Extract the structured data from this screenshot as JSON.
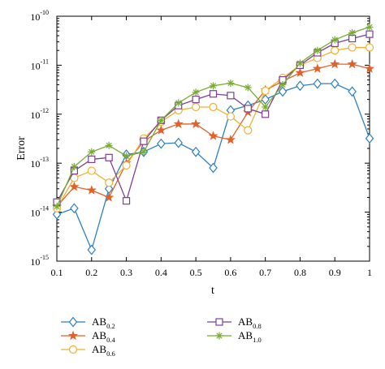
{
  "chart_data": {
    "type": "line",
    "xlabel": "t",
    "ylabel": "Error",
    "xscale": "linear",
    "yscale": "log",
    "xlim": [
      0.1,
      1.0
    ],
    "ylim": [
      1e-15,
      1e-10
    ],
    "grid": false,
    "legend_position": "bottom",
    "x_ticks": [
      0.1,
      0.2,
      0.3,
      0.4,
      0.5,
      0.6,
      0.7,
      0.8,
      0.9,
      1.0
    ],
    "x_tick_labels": [
      "0.1",
      "0.2",
      "0.3",
      "0.4",
      "0.5",
      "0.6",
      "0.7",
      "0.8",
      "0.9",
      "1"
    ],
    "y_ticks": [
      {
        "value": 1e-15,
        "base": "10",
        "exp": "-15"
      },
      {
        "value": 1e-14,
        "base": "10",
        "exp": "-14"
      },
      {
        "value": 1e-13,
        "base": "10",
        "exp": "-13"
      },
      {
        "value": 1e-12,
        "base": "10",
        "exp": "-12"
      },
      {
        "value": 1e-11,
        "base": "10",
        "exp": "-11"
      },
      {
        "value": 1e-10,
        "base": "10",
        "exp": "-10"
      }
    ],
    "x": [
      0.1,
      0.15,
      0.2,
      0.25,
      0.3,
      0.35,
      0.4,
      0.45,
      0.5,
      0.55,
      0.6,
      0.65,
      0.7,
      0.75,
      0.8,
      0.85,
      0.9,
      0.95,
      1.0
    ],
    "series": [
      {
        "name": "AB",
        "sub": "0.2",
        "color": "#2f7fc1",
        "marker": "diamond",
        "values": [
          9e-15,
          1.2e-14,
          1.7e-15,
          3e-14,
          1.5e-13,
          1.7e-13,
          2.5e-13,
          2.6e-13,
          1.7e-13,
          8e-14,
          1.2e-12,
          1.5e-12,
          2e-12,
          2.9e-12,
          3.8e-12,
          4.2e-12,
          4.2e-12,
          2.9e-12,
          3.2e-13
        ]
      },
      {
        "name": "AB",
        "sub": "0.4",
        "color": "#e0622a",
        "marker": "star",
        "values": [
          1.3e-14,
          3.3e-14,
          2.8e-14,
          2e-14,
          1e-13,
          2.8e-13,
          4.7e-13,
          6.3e-13,
          6.3e-13,
          3.6e-13,
          3e-13,
          1.1e-12,
          3.1e-12,
          4.7e-12,
          7e-12,
          8.5e-12,
          1.05e-11,
          1.05e-11,
          8.5e-12
        ]
      },
      {
        "name": "AB",
        "sub": "0.6",
        "color": "#f0b030",
        "marker": "circle",
        "values": [
          1.2e-14,
          5e-14,
          7e-14,
          4e-14,
          9e-14,
          3.2e-13,
          7e-13,
          1.2e-12,
          1.4e-12,
          1.4e-12,
          9e-13,
          4.7e-13,
          3e-12,
          5.5e-12,
          1e-11,
          1.4e-11,
          2e-11,
          2.3e-11,
          2.3e-11
        ]
      },
      {
        "name": "AB",
        "sub": "0.8",
        "color": "#7d3f98",
        "marker": "square",
        "values": [
          1.6e-14,
          7e-14,
          1.2e-13,
          1.3e-13,
          1.7e-14,
          2.8e-13,
          7.5e-13,
          1.5e-12,
          2e-12,
          2.6e-12,
          2.4e-12,
          1.3e-12,
          1e-12,
          5e-12,
          1e-11,
          1.8e-11,
          2.8e-11,
          3.5e-11,
          4.3e-11
        ]
      },
      {
        "name": "AB",
        "sub": "1.0",
        "color": "#77ac30",
        "marker": "asterisk",
        "values": [
          1.3e-14,
          8.5e-14,
          1.7e-13,
          2.3e-13,
          1.4e-13,
          1.7e-13,
          7.5e-13,
          1.7e-12,
          2.8e-12,
          3.8e-12,
          4.3e-12,
          3.5e-12,
          1.4e-12,
          4e-12,
          1.1e-11,
          2e-11,
          3.3e-11,
          4.6e-11,
          6e-11
        ]
      }
    ]
  }
}
